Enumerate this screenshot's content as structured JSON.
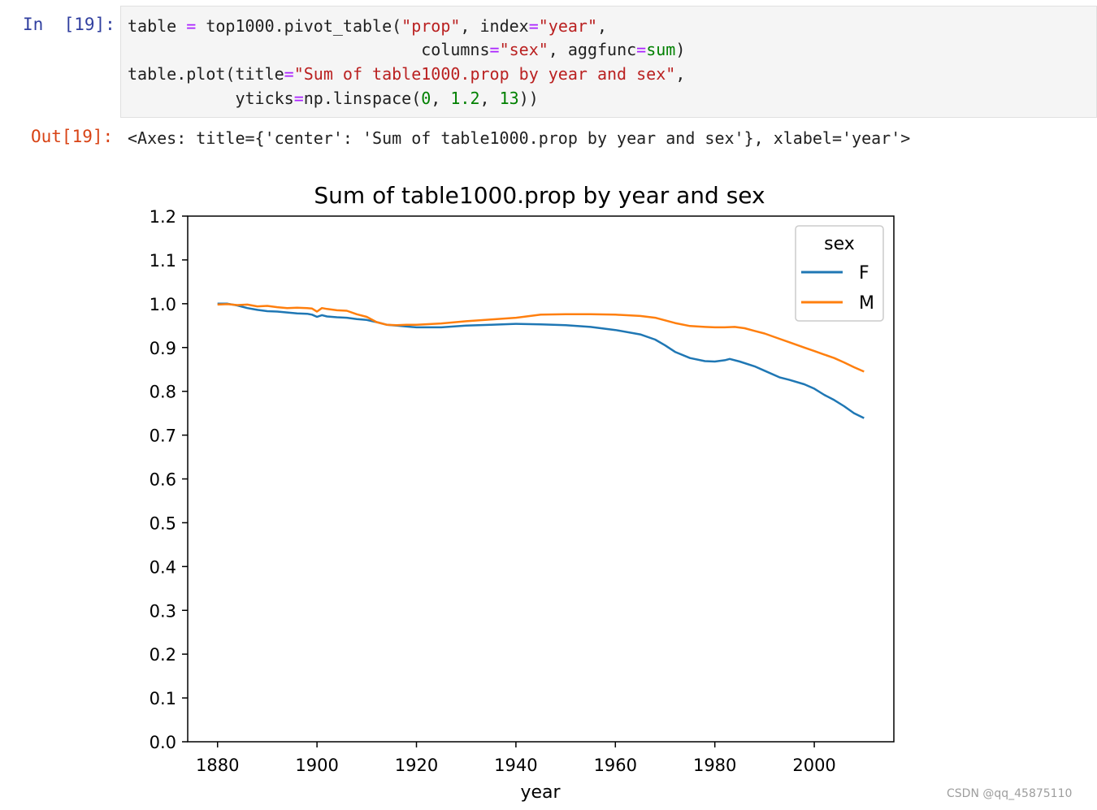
{
  "input_prompt": "In  [19]:",
  "output_prompt": "Out[19]:",
  "code": {
    "line1": {
      "a": "table ",
      "b": "=",
      "c": " top1000.pivot_table(",
      "d": "\"prop\"",
      "e": ", index",
      "f": "=",
      "g": "\"year\"",
      "h": ","
    },
    "line2": {
      "a": "                              columns",
      "b": "=",
      "c": "\"sex\"",
      "d": ", aggfunc",
      "e": "=",
      "f": "sum",
      "g": ")"
    },
    "line3": {
      "a": "table.plot(title",
      "b": "=",
      "c": "\"Sum of table1000.prop by year and sex\"",
      "d": ","
    },
    "line4": {
      "a": "           yticks",
      "b": "=",
      "c": "np.linspace(",
      "d": "0",
      "e": ", ",
      "f": "1.2",
      "g": ", ",
      "h": "13",
      "i": "))"
    }
  },
  "output_text": "<Axes: title={'center': 'Sum of table1000.prop by year and sex'}, xlabel='year'>",
  "watermark": "CSDN @qq_45875110",
  "chart_data": {
    "type": "line",
    "title": "Sum of table1000.prop by year and sex",
    "xlabel": "year",
    "ylabel": "",
    "xlim": [
      1874,
      2016
    ],
    "ylim": [
      0,
      1.2
    ],
    "x_ticks": [
      "1880",
      "1900",
      "1920",
      "1940",
      "1960",
      "1980",
      "2000"
    ],
    "y_ticks": [
      "0.0",
      "0.1",
      "0.2",
      "0.3",
      "0.4",
      "0.5",
      "0.6",
      "0.7",
      "0.8",
      "0.9",
      "1.0",
      "1.1",
      "1.2"
    ],
    "legend_title": "sex",
    "legend_position": "upper right",
    "grid": false,
    "colors": {
      "F": "#1f77b4",
      "M": "#ff7f0e"
    },
    "series": [
      {
        "name": "F",
        "x": [
          1880,
          1882,
          1884,
          1886,
          1888,
          1890,
          1892,
          1894,
          1896,
          1898,
          1899,
          1900,
          1901,
          1902,
          1904,
          1906,
          1908,
          1910,
          1912,
          1914,
          1916,
          1918,
          1920,
          1925,
          1930,
          1935,
          1940,
          1945,
          1950,
          1955,
          1960,
          1965,
          1968,
          1970,
          1972,
          1975,
          1978,
          1980,
          1982,
          1983,
          1985,
          1988,
          1990,
          1993,
          1995,
          1998,
          2000,
          2002,
          2004,
          2006,
          2008,
          2010
        ],
        "y": [
          1.0,
          1.0,
          0.996,
          0.99,
          0.986,
          0.983,
          0.982,
          0.98,
          0.978,
          0.977,
          0.975,
          0.97,
          0.974,
          0.971,
          0.969,
          0.968,
          0.965,
          0.963,
          0.958,
          0.952,
          0.95,
          0.948,
          0.946,
          0.946,
          0.95,
          0.952,
          0.954,
          0.953,
          0.951,
          0.947,
          0.94,
          0.93,
          0.918,
          0.905,
          0.89,
          0.876,
          0.869,
          0.868,
          0.871,
          0.874,
          0.868,
          0.857,
          0.847,
          0.832,
          0.826,
          0.816,
          0.806,
          0.792,
          0.78,
          0.766,
          0.75,
          0.739
        ]
      },
      {
        "name": "M",
        "x": [
          1880,
          1882,
          1884,
          1886,
          1888,
          1890,
          1892,
          1894,
          1896,
          1898,
          1899,
          1900,
          1901,
          1902,
          1904,
          1906,
          1908,
          1910,
          1912,
          1914,
          1916,
          1918,
          1920,
          1925,
          1930,
          1935,
          1940,
          1945,
          1950,
          1955,
          1960,
          1965,
          1968,
          1970,
          1972,
          1975,
          1978,
          1980,
          1982,
          1984,
          1986,
          1988,
          1990,
          1993,
          1995,
          1998,
          2000,
          2002,
          2004,
          2006,
          2008,
          2010
        ],
        "y": [
          0.998,
          0.999,
          0.997,
          0.998,
          0.994,
          0.995,
          0.992,
          0.99,
          0.991,
          0.99,
          0.989,
          0.982,
          0.99,
          0.988,
          0.985,
          0.984,
          0.976,
          0.97,
          0.958,
          0.952,
          0.951,
          0.952,
          0.952,
          0.955,
          0.96,
          0.964,
          0.968,
          0.975,
          0.976,
          0.976,
          0.975,
          0.972,
          0.968,
          0.962,
          0.956,
          0.949,
          0.947,
          0.946,
          0.946,
          0.947,
          0.944,
          0.938,
          0.932,
          0.92,
          0.912,
          0.9,
          0.892,
          0.884,
          0.876,
          0.866,
          0.855,
          0.845
        ]
      }
    ]
  }
}
